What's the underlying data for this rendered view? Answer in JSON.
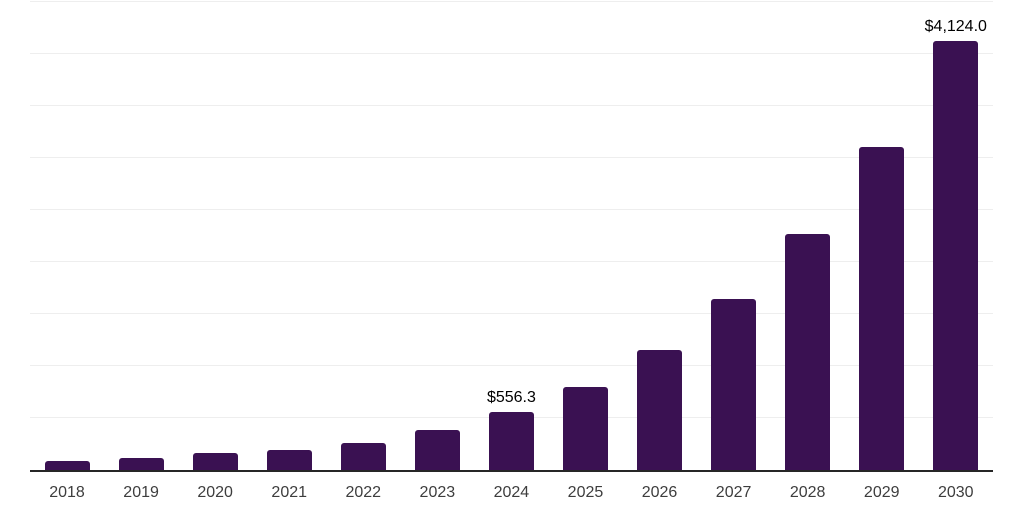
{
  "chart_data": {
    "type": "bar",
    "title": "",
    "xlabel": "",
    "ylabel": "",
    "categories": [
      "2018",
      "2019",
      "2020",
      "2021",
      "2022",
      "2023",
      "2024",
      "2025",
      "2026",
      "2027",
      "2028",
      "2029",
      "2030"
    ],
    "values": [
      85,
      120,
      165,
      195,
      255,
      385,
      556.3,
      795,
      1150,
      1640,
      2270,
      3110,
      4124.0
    ],
    "data_labels": [
      "",
      "",
      "",
      "",
      "",
      "",
      "$556.3",
      "",
      "",
      "",
      "",
      "",
      "$4,124.0"
    ],
    "ylim": [
      0,
      4500
    ],
    "gridline_step": 500,
    "grid": true,
    "legend": false,
    "bar_color": "#3a1152",
    "axis_line_color": "#262626",
    "gridline_color": "#eeeeee",
    "tick_label_color": "#3d3d3d",
    "data_label_color": "#000000",
    "background": "#ffffff"
  }
}
